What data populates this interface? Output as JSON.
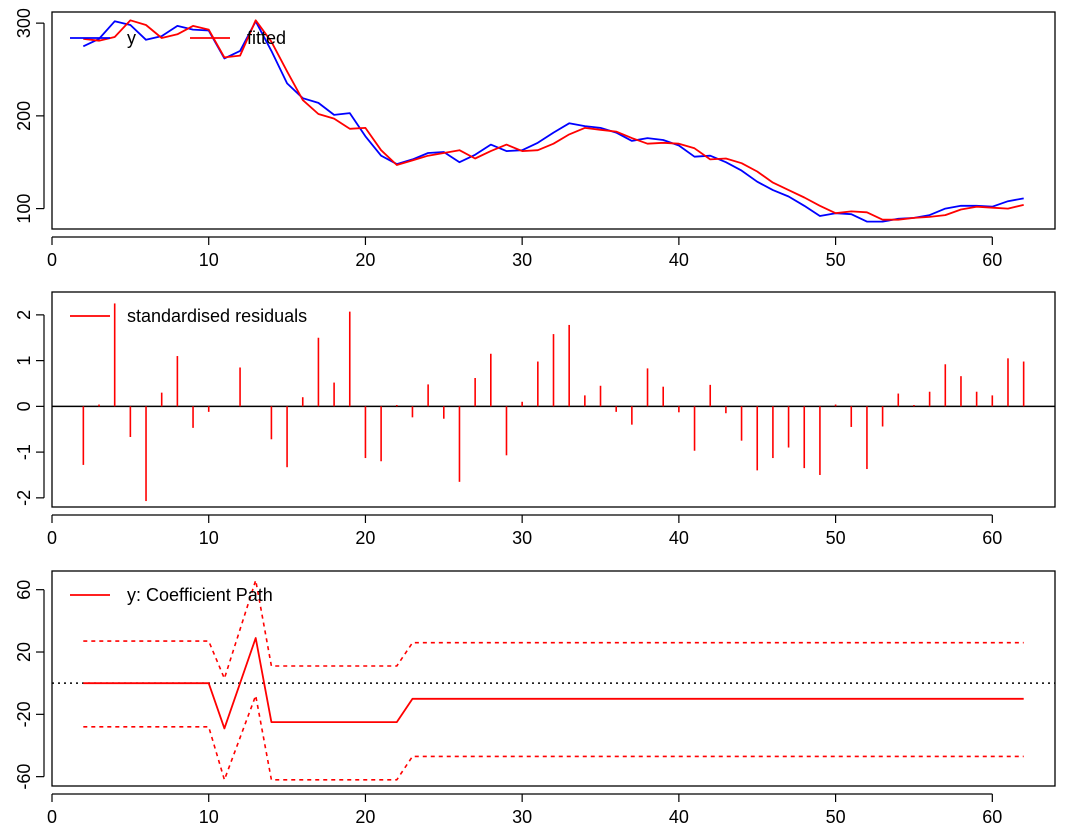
{
  "chart_data": [
    {
      "type": "line",
      "title": "",
      "xlabel": "",
      "ylabel": "",
      "xlim": [
        0,
        64
      ],
      "ylim": [
        78,
        312
      ],
      "xticks": [
        0,
        10,
        20,
        30,
        40,
        50,
        60
      ],
      "yticks": [
        100,
        200,
        300
      ],
      "grid": false,
      "legend_position": "top-left",
      "series": [
        {
          "name": "y",
          "color": "#0000ff",
          "style": "solid",
          "x": [
            2,
            3,
            4,
            5,
            6,
            7,
            8,
            9,
            10,
            11,
            12,
            13,
            14,
            15,
            16,
            17,
            18,
            19,
            20,
            21,
            22,
            23,
            24,
            25,
            26,
            27,
            28,
            29,
            30,
            31,
            32,
            33,
            34,
            35,
            36,
            37,
            38,
            39,
            40,
            41,
            42,
            43,
            44,
            45,
            46,
            47,
            48,
            49,
            50,
            51,
            52,
            53,
            54,
            55,
            56,
            57,
            58,
            59,
            60,
            61,
            62
          ],
          "values": [
            275,
            283,
            302,
            298,
            282,
            286,
            297,
            293,
            292,
            262,
            270,
            302,
            270,
            235,
            219,
            214,
            201,
            203,
            178,
            157,
            148,
            153,
            160,
            161,
            150,
            158,
            169,
            162,
            163,
            171,
            182,
            192,
            189,
            187,
            182,
            173,
            176,
            174,
            168,
            156,
            157,
            150,
            141,
            129,
            120,
            113,
            103,
            92,
            95,
            94,
            86,
            86,
            89,
            90,
            93,
            100,
            103,
            103,
            102,
            108,
            111
          ]
        },
        {
          "name": "fitted",
          "color": "#ff0000",
          "style": "solid",
          "x": [
            2,
            3,
            4,
            5,
            6,
            7,
            8,
            9,
            10,
            11,
            12,
            13,
            14,
            15,
            16,
            17,
            18,
            19,
            20,
            21,
            22,
            23,
            24,
            25,
            26,
            27,
            28,
            29,
            30,
            31,
            32,
            33,
            34,
            35,
            36,
            37,
            38,
            39,
            40,
            41,
            42,
            43,
            44,
            45,
            46,
            47,
            48,
            49,
            50,
            51,
            52,
            53,
            54,
            55,
            56,
            57,
            58,
            59,
            60,
            61,
            62
          ],
          "values": [
            283,
            281,
            285,
            303,
            298,
            284,
            288,
            297,
            293,
            263,
            265,
            303,
            280,
            248,
            217,
            202,
            197,
            186,
            187,
            163,
            147,
            152,
            157,
            160,
            163,
            154,
            162,
            169,
            162,
            163,
            170,
            180,
            187,
            185,
            183,
            176,
            170,
            171,
            170,
            165,
            153,
            154,
            149,
            140,
            128,
            120,
            112,
            103,
            95,
            97,
            96,
            88,
            88,
            90,
            91,
            93,
            99,
            102,
            101,
            100,
            104
          ]
        }
      ],
      "legend": [
        "y",
        "fitted"
      ]
    },
    {
      "type": "bar",
      "title": "",
      "xlabel": "",
      "ylabel": "",
      "xlim": [
        0,
        64
      ],
      "ylim": [
        -2.2,
        2.5
      ],
      "xticks": [
        0,
        10,
        20,
        30,
        40,
        50,
        60
      ],
      "yticks": [
        -2,
        -1,
        0,
        1,
        2
      ],
      "grid": false,
      "legend_position": "top-left",
      "zero_line": true,
      "series": [
        {
          "name": "standardised residuals",
          "color": "#ff0000",
          "x": [
            2,
            3,
            4,
            5,
            6,
            7,
            8,
            9,
            10,
            11,
            12,
            13,
            14,
            15,
            16,
            17,
            18,
            19,
            20,
            21,
            22,
            23,
            24,
            25,
            26,
            27,
            28,
            29,
            30,
            31,
            32,
            33,
            34,
            35,
            36,
            37,
            38,
            39,
            40,
            41,
            42,
            43,
            44,
            45,
            46,
            47,
            48,
            49,
            50,
            51,
            52,
            53,
            54,
            55,
            56,
            57,
            58,
            59,
            60,
            61,
            62
          ],
          "values": [
            -1.28,
            0.04,
            2.25,
            -0.67,
            -2.07,
            0.3,
            1.1,
            -0.47,
            -0.12,
            0,
            0.85,
            0,
            -0.72,
            -1.33,
            0.2,
            1.5,
            0.52,
            2.07,
            -1.13,
            -1.2,
            0.03,
            -0.24,
            0.48,
            -0.27,
            -1.65,
            0.62,
            1.15,
            -1.07,
            0.1,
            0.98,
            1.58,
            1.78,
            0.24,
            0.45,
            -0.12,
            -0.4,
            0.83,
            0.43,
            -0.13,
            -0.97,
            0.47,
            -0.15,
            -0.75,
            -1.4,
            -1.13,
            -0.9,
            -1.35,
            -1.5,
            0.04,
            -0.45,
            -1.37,
            -0.44,
            0.28,
            0.03,
            0.32,
            0.92,
            0.66,
            0.32,
            0.24,
            1.05,
            0.98
          ]
        }
      ],
      "legend": [
        "standardised residuals"
      ]
    },
    {
      "type": "line",
      "title": "",
      "xlabel": "",
      "ylabel": "",
      "xlim": [
        0,
        64
      ],
      "ylim": [
        -66,
        72
      ],
      "xticks": [
        0,
        10,
        20,
        30,
        40,
        50,
        60
      ],
      "yticks": [
        -60,
        -20,
        20,
        60
      ],
      "grid": false,
      "legend_position": "top-left",
      "zero_line_dotted": true,
      "series": [
        {
          "name": "y: Coefficient Path",
          "color": "#ff0000",
          "style": "solid",
          "x": [
            2,
            10,
            11,
            13,
            14,
            22,
            23,
            62
          ],
          "values": [
            0,
            0,
            -29,
            29,
            -25,
            -25,
            -10,
            -10
          ]
        },
        {
          "color": "#ff0000",
          "style": "dotted",
          "x": [
            2,
            10,
            11,
            13,
            14,
            22,
            23,
            62
          ],
          "values": [
            27,
            27,
            3,
            66,
            11,
            11,
            26,
            26
          ]
        },
        {
          "color": "#ff0000",
          "style": "dotted",
          "x": [
            2,
            10,
            11,
            13,
            14,
            22,
            23,
            62
          ],
          "values": [
            -28,
            -28,
            -62,
            -8,
            -62,
            -62,
            -47,
            -47
          ]
        }
      ],
      "legend": [
        "y: Coefficient Path"
      ]
    }
  ]
}
